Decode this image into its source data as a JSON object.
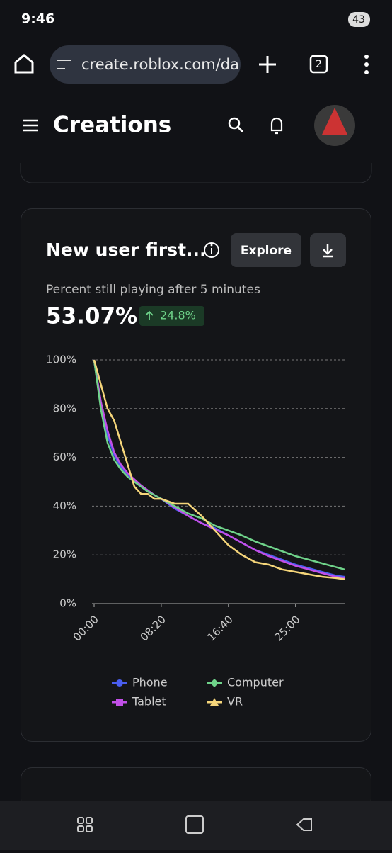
{
  "status_bar": {
    "time": "9:46",
    "battery": "43"
  },
  "browser": {
    "url": "create.roblox.com/da",
    "tab_count": "2"
  },
  "app_header": {
    "title": "Creations"
  },
  "card": {
    "title": "New user first...",
    "explore_button": "Explore",
    "metric_label": "Percent still playing after 5 minutes",
    "metric_value": "53.07%",
    "change": "24.8%"
  },
  "chart_data": {
    "type": "line",
    "x": [
      0,
      50,
      100,
      150,
      200,
      250,
      300,
      350,
      400,
      450,
      500,
      600,
      700,
      800,
      900,
      1000,
      1100,
      1200,
      1300,
      1400,
      1500,
      1600,
      1700,
      1800,
      1865
    ],
    "series": [
      {
        "name": "Phone",
        "color": "#4a5ef0",
        "marker": "circle",
        "values": [
          100,
          82,
          69,
          61,
          56,
          53,
          50,
          48,
          46,
          44.5,
          43,
          39,
          36,
          33,
          31,
          28,
          25,
          22,
          20,
          18,
          16,
          14.5,
          13,
          11.5,
          11
        ]
      },
      {
        "name": "Tablet",
        "color": "#c24fe8",
        "marker": "square",
        "values": [
          100,
          83,
          71,
          62,
          57,
          53.5,
          51,
          48.5,
          46.5,
          44.5,
          43,
          39.5,
          36,
          33,
          30.5,
          28,
          25,
          22,
          19.5,
          17.5,
          15.5,
          14,
          12.5,
          11,
          10.5
        ]
      },
      {
        "name": "Computer",
        "color": "#6fd38a",
        "marker": "diamond",
        "values": [
          100,
          80,
          66,
          59,
          55,
          52,
          50,
          48,
          46,
          44.5,
          43,
          40,
          37,
          35,
          32,
          30,
          28,
          25.5,
          23.5,
          21.5,
          19.5,
          18,
          16.5,
          15,
          14
        ]
      },
      {
        "name": "VR",
        "color": "#f5d57a",
        "marker": "triangle",
        "values": [
          100,
          90,
          80,
          75,
          66,
          57,
          48,
          45,
          45,
          43,
          43,
          41,
          41,
          36,
          30,
          24,
          20,
          17,
          16,
          14,
          13,
          12,
          11,
          10.5,
          10
        ]
      }
    ],
    "xlim": [
      0,
      1865
    ],
    "ylim": [
      0,
      100
    ],
    "xticks": [
      {
        "value": 0,
        "label": "00:00"
      },
      {
        "value": 500,
        "label": "08:20"
      },
      {
        "value": 1000,
        "label": "16:40"
      },
      {
        "value": 1500,
        "label": "25:00"
      }
    ],
    "yticks": [
      {
        "value": 0,
        "label": "0%"
      },
      {
        "value": 20,
        "label": "20%"
      },
      {
        "value": 40,
        "label": "40%"
      },
      {
        "value": 60,
        "label": "60%"
      },
      {
        "value": 80,
        "label": "80%"
      },
      {
        "value": 100,
        "label": "100%"
      }
    ],
    "grid": true
  }
}
